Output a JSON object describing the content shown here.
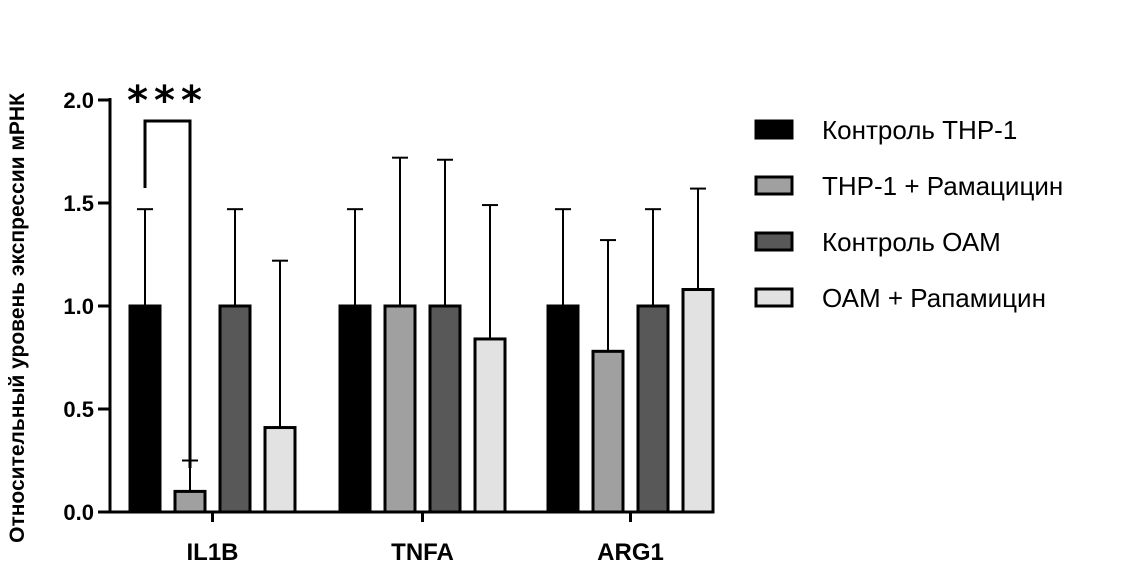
{
  "chart_data": {
    "type": "bar",
    "categories": [
      "IL1B",
      "TNFA",
      "ARG1"
    ],
    "ylabel": "Относительный уровень экспрессии мРНК",
    "ylim": [
      0,
      2.0
    ],
    "yticks": [
      "0.0",
      "0.5",
      "1.0",
      "1.5",
      "2.0"
    ],
    "grid": false,
    "legend_position": "right",
    "series": [
      {
        "name": "Контроль ТНР-1",
        "color": "#000000",
        "values": [
          1.0,
          1.0,
          1.0
        ],
        "error": [
          0.47,
          0.47,
          0.47
        ]
      },
      {
        "name": "ТНР-1 + Рамацицин",
        "color": "#a0a0a0",
        "values": [
          0.1,
          1.0,
          0.78
        ],
        "error": [
          0.15,
          0.72,
          0.54
        ]
      },
      {
        "name": "Контроль ОАМ",
        "color": "#585858",
        "values": [
          1.0,
          1.0,
          1.0
        ],
        "error": [
          0.47,
          0.71,
          0.47
        ]
      },
      {
        "name": "ОАМ + Рапамицин",
        "color": "#e2e2e2",
        "values": [
          0.41,
          0.84,
          1.08
        ],
        "error": [
          0.81,
          0.65,
          0.49
        ]
      }
    ],
    "annotations": [
      {
        "text": "***",
        "category": "IL1B",
        "between_series": [
          0,
          1
        ]
      }
    ]
  }
}
